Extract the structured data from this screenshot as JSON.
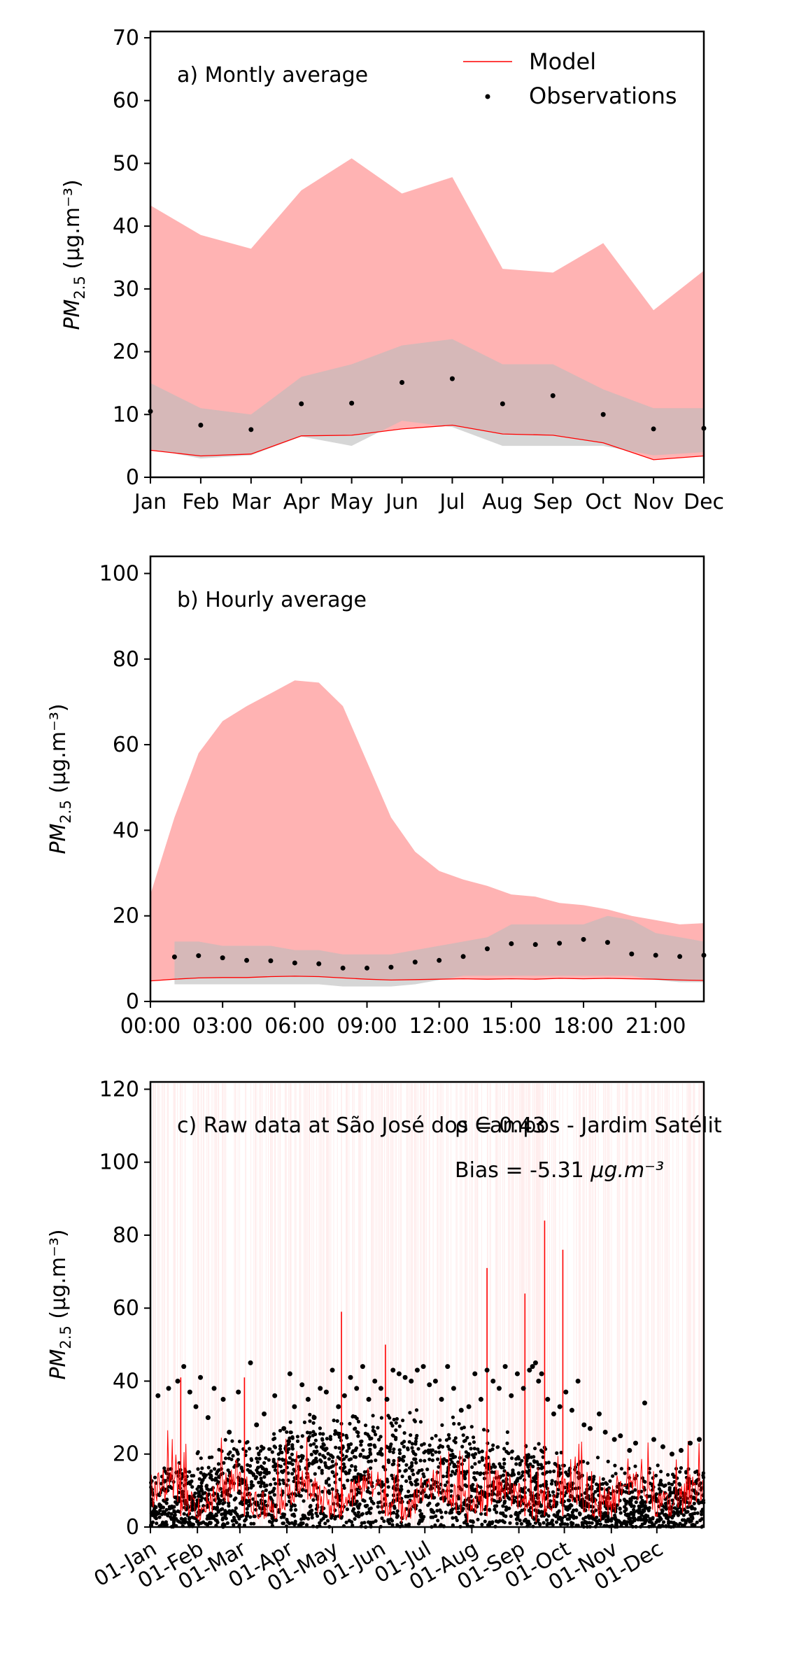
{
  "colors": {
    "model": "#ff0000",
    "model_band": "#ff9999",
    "obs_band": "#bbbbbb",
    "observations": "#000000"
  },
  "ylabel_units": "(μg.m⁻³)",
  "chart_data": [
    {
      "id": "monthly",
      "type": "line",
      "annotation": "a) Montly average",
      "legend": {
        "model_label": "Model",
        "obs_label": "Observations",
        "placement": "top-right"
      },
      "categories": [
        "Jan",
        "Feb",
        "Mar",
        "Apr",
        "May",
        "Jun",
        "Jul",
        "Aug",
        "Sep",
        "Oct",
        "Nov",
        "Dec"
      ],
      "ylim": [
        0,
        71
      ],
      "yticks": [
        0,
        10,
        20,
        30,
        40,
        50,
        60,
        70
      ],
      "series": [
        {
          "name": "Model",
          "values": [
            4.3,
            3.4,
            3.7,
            6.6,
            6.7,
            7.7,
            8.3,
            6.9,
            6.7,
            5.5,
            2.8,
            3.4
          ]
        },
        {
          "name": "Observations",
          "values": [
            10.5,
            8.3,
            7.6,
            11.7,
            11.8,
            15.1,
            15.7,
            11.7,
            13.0,
            10.0,
            7.7,
            7.8
          ]
        }
      ],
      "model_band": {
        "upper": [
          43.3,
          38.6,
          36.4,
          45.7,
          50.8,
          45.2,
          47.8,
          33.2,
          32.6,
          37.3,
          26.6,
          32.9
        ],
        "lower": [
          4.3,
          3.4,
          3.7,
          6.6,
          6.7,
          7.7,
          8.3,
          6.9,
          6.7,
          5.5,
          2.8,
          3.4
        ]
      },
      "obs_band": {
        "upper": [
          15.0,
          11.0,
          10.0,
          16.0,
          18.0,
          21.0,
          22.0,
          18.0,
          18.0,
          14.0,
          11.0,
          11.0
        ],
        "lower": [
          4.5,
          3.0,
          3.5,
          6.5,
          5.0,
          9.0,
          8.0,
          5.0,
          5.0,
          5.0,
          3.5,
          4.0
        ]
      }
    },
    {
      "id": "hourly",
      "type": "line",
      "annotation": "b) Hourly average",
      "xticks": [
        "00:00",
        "03:00",
        "06:00",
        "09:00",
        "12:00",
        "15:00",
        "18:00",
        "21:00"
      ],
      "x": [
        0,
        1,
        2,
        3,
        4,
        5,
        6,
        7,
        8,
        9,
        10,
        11,
        12,
        13,
        14,
        15,
        16,
        17,
        18,
        19,
        20,
        21,
        22,
        23
      ],
      "xlim": [
        0,
        23
      ],
      "ylim": [
        0,
        104
      ],
      "yticks": [
        0,
        20,
        40,
        60,
        80,
        100
      ],
      "series": [
        {
          "name": "Model",
          "values": [
            4.8,
            5.2,
            5.5,
            5.6,
            5.6,
            5.8,
            5.9,
            5.8,
            5.5,
            5.2,
            5.0,
            5.1,
            5.2,
            5.3,
            5.2,
            5.3,
            5.2,
            5.4,
            5.3,
            5.4,
            5.3,
            5.2,
            5.0,
            4.9
          ]
        },
        {
          "name": "Observations",
          "values": [
            null,
            10.4,
            10.7,
            10.2,
            9.6,
            9.5,
            9.0,
            8.8,
            7.8,
            7.8,
            8.0,
            9.2,
            9.6,
            10.5,
            12.3,
            13.5,
            13.3,
            13.6,
            14.5,
            13.8,
            11.1,
            10.8,
            10.5,
            10.8
          ]
        }
      ],
      "model_band": {
        "upper": [
          25,
          43,
          58,
          65.5,
          69,
          72,
          75,
          74.5,
          69,
          56,
          43,
          35,
          30.5,
          28.5,
          27,
          25,
          24.5,
          23,
          22.5,
          21.5,
          20,
          19,
          18,
          18.3
        ]
      },
      "obs_band": {
        "upper": [
          null,
          14,
          14,
          13,
          13,
          13,
          12,
          12,
          11,
          11,
          11,
          12,
          13,
          14,
          15,
          18,
          18,
          18,
          18,
          20,
          19,
          16,
          15,
          14
        ],
        "lower": [
          null,
          4,
          4,
          4,
          4,
          4,
          4,
          4,
          3.5,
          3.5,
          3.5,
          4,
          5,
          6,
          6,
          6,
          6,
          6,
          6,
          6,
          6,
          5,
          4.5,
          4.5
        ]
      }
    },
    {
      "id": "raw",
      "type": "scatter",
      "annotation": "c) Raw data at São José dos Campos - Jardim Satélit",
      "stat_r": "ρ = 0.43",
      "stat_bias": "Bias = -5.31 ",
      "bias_units": "μg.m⁻³",
      "xticks": [
        "01-Jan",
        "01-Feb",
        "01-Mar",
        "01-Apr",
        "01-May",
        "01-Jun",
        "01-Jul",
        "01-Aug",
        "01-Sep",
        "01-Oct",
        "01-Nov",
        "01-Dec"
      ],
      "xtick_days": [
        0,
        31,
        59,
        90,
        120,
        151,
        181,
        212,
        243,
        273,
        304,
        334
      ],
      "xlim": [
        0,
        365
      ],
      "ylim": [
        0,
        122
      ],
      "yticks": [
        0,
        20,
        40,
        60,
        80,
        100,
        120
      ],
      "series": [
        {
          "name": "Model",
          "x": [
            20,
            62,
            126,
            155,
            222,
            247,
            260,
            272
          ],
          "values": [
            41,
            41,
            59,
            50,
            71,
            64,
            84,
            76
          ]
        },
        {
          "name": "Observations",
          "x": [
            5,
            12,
            18,
            22,
            26,
            30,
            33,
            38,
            42,
            48,
            52,
            58,
            66,
            70,
            75,
            82,
            88,
            92,
            95,
            100,
            104,
            108,
            112,
            116,
            120,
            124,
            128,
            132,
            136,
            140,
            144,
            148,
            152,
            156,
            160,
            164,
            168,
            172,
            176,
            180,
            184,
            188,
            192,
            196,
            200,
            205,
            210,
            214,
            218,
            222,
            226,
            230,
            234,
            238,
            242,
            246,
            250,
            252,
            254,
            256,
            258,
            262,
            266,
            270,
            274,
            278,
            282,
            286,
            290,
            296,
            300,
            306,
            310,
            316,
            320,
            326,
            332,
            338,
            344,
            350,
            356,
            362
          ],
          "values": [
            36,
            38,
            40,
            44,
            37,
            33,
            41,
            30,
            38,
            35,
            26,
            37,
            45,
            28,
            31,
            36,
            27,
            42,
            33,
            39,
            35,
            30,
            38,
            37,
            43,
            33,
            36,
            41,
            38,
            44,
            35,
            40,
            38,
            35,
            43,
            42,
            41,
            40,
            43,
            44,
            39,
            40,
            35,
            44,
            38,
            32,
            33,
            42,
            35,
            43,
            40,
            38,
            44,
            36,
            42,
            38,
            43,
            44,
            45,
            40,
            42,
            35,
            31,
            33,
            37,
            32,
            40,
            28,
            27,
            31,
            26,
            24,
            25,
            21,
            23,
            34,
            24,
            22,
            20,
            21,
            23,
            24
          ]
        }
      ]
    }
  ]
}
